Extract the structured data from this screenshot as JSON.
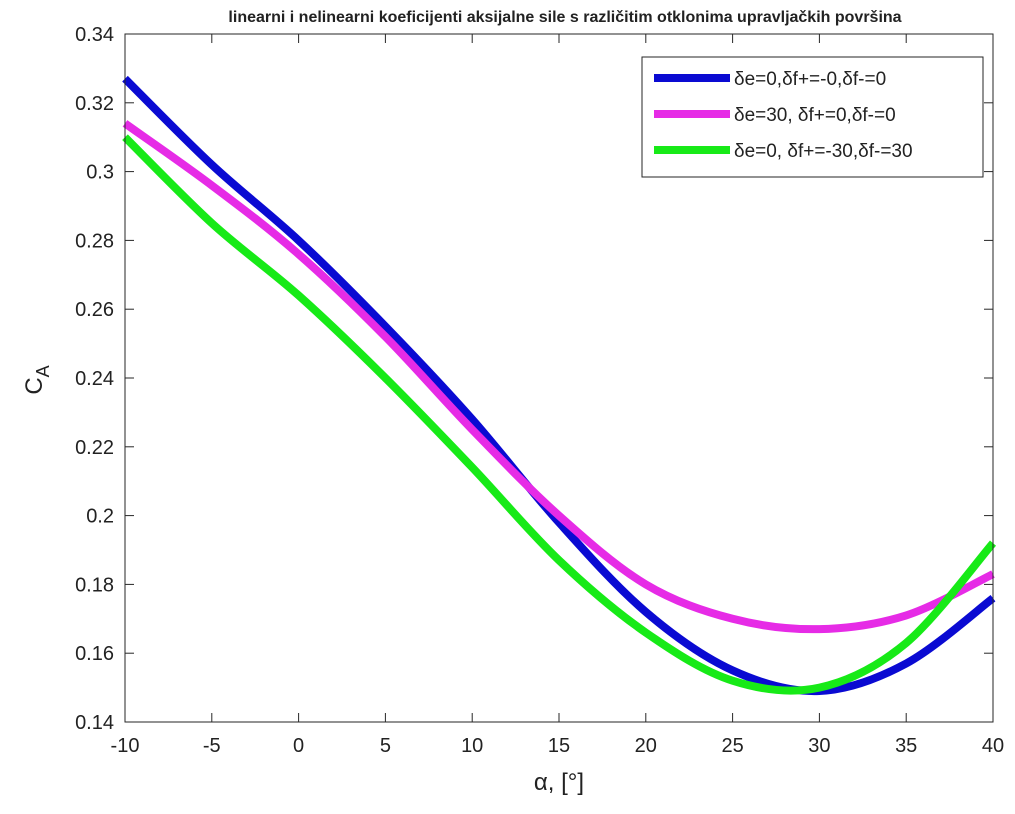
{
  "chart_data": {
    "type": "line",
    "title": "linearni i nelinearni koeficijenti aksijalne sile s različitim otklonima upravljačkih površina",
    "xlabel": "α, [°]",
    "ylabel": "C_A",
    "ylabel_main": "C",
    "ylabel_sub": "A",
    "xlim": [
      -10,
      40
    ],
    "ylim": [
      0.14,
      0.34
    ],
    "xticks": [
      -10,
      -5,
      0,
      5,
      10,
      15,
      20,
      25,
      30,
      35,
      40
    ],
    "xtick_labels": [
      "-10",
      "-5",
      "0",
      "5",
      "10",
      "15",
      "20",
      "25",
      "30",
      "35",
      "40"
    ],
    "yticks": [
      0.14,
      0.16,
      0.18,
      0.2,
      0.22,
      0.24,
      0.26,
      0.28,
      0.3,
      0.32,
      0.34
    ],
    "ytick_labels": [
      "0.14",
      "0.16",
      "0.18",
      "0.2",
      "0.22",
      "0.24",
      "0.26",
      "0.28",
      "0.3",
      "0.32",
      "0.34"
    ],
    "grid": false,
    "legend_position": "top-right",
    "x": [
      -10,
      -5,
      0,
      5,
      10,
      15,
      20,
      25,
      30,
      35,
      40
    ],
    "series": [
      {
        "name": "δe=0,δf+=-0,δf-=0",
        "color": "#0a0ad2",
        "values": [
          0.327,
          0.302,
          0.28,
          0.255,
          0.228,
          0.198,
          0.172,
          0.155,
          0.149,
          0.157,
          0.176
        ]
      },
      {
        "name": "δe=30, δf+=0,δf-=0",
        "color": "#e62be6",
        "values": [
          0.314,
          0.296,
          0.276,
          0.252,
          0.225,
          0.2,
          0.18,
          0.17,
          0.167,
          0.171,
          0.183
        ]
      },
      {
        "name": "δe=0, δf+=-30,δf-=30",
        "color": "#17ea17",
        "values": [
          0.31,
          0.285,
          0.264,
          0.24,
          0.214,
          0.187,
          0.166,
          0.152,
          0.15,
          0.163,
          0.192
        ]
      }
    ]
  }
}
